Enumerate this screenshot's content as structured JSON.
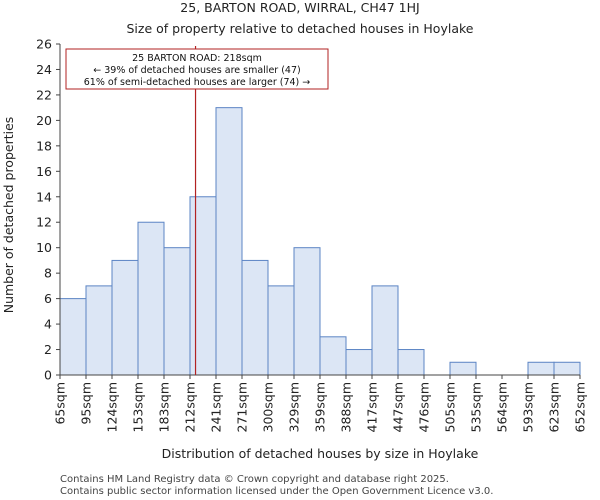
{
  "chart_data": {
    "type": "bar",
    "title_lines": [
      "25, BARTON ROAD, WIRRAL, CH47 1HJ",
      "Size of property relative to detached houses in Hoylake"
    ],
    "xlabel": "Distribution of detached houses by size in Hoylake",
    "ylabel": "Number of detached properties",
    "bin_edges": [
      65,
      95,
      124,
      153,
      183,
      212,
      241,
      271,
      300,
      329,
      359,
      388,
      417,
      447,
      476,
      505,
      535,
      564,
      593,
      623,
      652
    ],
    "x_tick_labels": [
      "65sqm",
      "95sqm",
      "124sqm",
      "153sqm",
      "183sqm",
      "212sqm",
      "241sqm",
      "271sqm",
      "300sqm",
      "329sqm",
      "359sqm",
      "388sqm",
      "417sqm",
      "447sqm",
      "476sqm",
      "505sqm",
      "535sqm",
      "564sqm",
      "593sqm",
      "623sqm",
      "652sqm"
    ],
    "values": [
      6,
      7,
      9,
      12,
      10,
      14,
      21,
      9,
      7,
      10,
      3,
      2,
      7,
      2,
      0,
      1,
      0,
      0,
      1,
      1
    ],
    "ylim": [
      0,
      26
    ],
    "y_ticks": [
      0,
      2,
      4,
      6,
      8,
      10,
      12,
      14,
      16,
      18,
      20,
      22,
      24,
      26
    ],
    "marker_value": 218,
    "annotation_lines": [
      "25 BARTON ROAD: 218sqm",
      "← 39% of detached houses are smaller (47)",
      "61% of semi-detached houses are larger (74) →"
    ],
    "bar_color": "#dce6f5",
    "bar_edge_color": "#5b84c4",
    "marker_color": "#b22222"
  },
  "footer": [
    "Contains HM Land Registry data © Crown copyright and database right 2025.",
    "Contains public sector information licensed under the Open Government Licence v3.0."
  ]
}
